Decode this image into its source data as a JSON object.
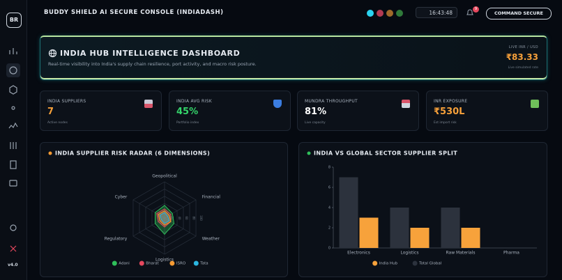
{
  "header": {
    "logo": "BR",
    "title": "BUDDY SHIELD AI SECURE CONSOLE (INDIADASH)",
    "clock": "16:43:48",
    "notifications": "9",
    "button": "COMMAND SECURE"
  },
  "sidebar": {
    "version": "v4.0"
  },
  "hero": {
    "title": "INDIA HUB INTELLIGENCE DASHBOARD",
    "subtitle": "Real-time visibility into India's supply chain resilience, port activity, and macro risk posture.",
    "rate_label": "LIVE INR / USD",
    "rate_value": "₹83.33",
    "rate_note": "Live simulated rate"
  },
  "cards": [
    {
      "label": "INDIA SUPPLIERS",
      "value": "7",
      "note": "Active nodes"
    },
    {
      "label": "INDIA AVG RISK",
      "value": "45%",
      "note": "Portfolio index"
    },
    {
      "label": "MUNDRA THROUGHPUT",
      "value": "81%",
      "note": "Live capacity"
    },
    {
      "label": "INR EXPOSURE",
      "value": "₹530L",
      "note": "Est import risk"
    }
  ],
  "chart_data": [
    {
      "type": "radar",
      "title": "INDIA SUPPLIER RISK RADAR (6 DIMENSIONS)",
      "categories": [
        "Geopolitical",
        "Financial",
        "Weather",
        "Logistics",
        "Regulatory",
        "Cyber"
      ],
      "series": [
        {
          "name": "Adani",
          "color": "#2fbf5a",
          "values": [
            35,
            25,
            30,
            45,
            30,
            30
          ]
        },
        {
          "name": "Bharat",
          "color": "#e5485e",
          "values": [
            25,
            20,
            20,
            25,
            20,
            25
          ]
        },
        {
          "name": "ISRO",
          "color": "#f59a32",
          "values": [
            20,
            15,
            20,
            20,
            15,
            20
          ]
        },
        {
          "name": "Tata",
          "color": "#2bb6e0",
          "values": [
            15,
            10,
            15,
            15,
            10,
            15
          ]
        }
      ],
      "rlim": [
        0,
        100
      ],
      "rticks": [
        20,
        40,
        60,
        80,
        100
      ]
    },
    {
      "type": "bar",
      "title": "INDIA VS GLOBAL SECTOR SUPPLIER SPLIT",
      "categories": [
        "Electronics",
        "Logistics",
        "Raw Materials",
        "Pharma"
      ],
      "series": [
        {
          "name": "India Hub",
          "color": "#f7a23b",
          "values": [
            3,
            2,
            2,
            0
          ]
        },
        {
          "name": "Total Global",
          "color": "#2c323d",
          "values": [
            7,
            4,
            4,
            0
          ]
        }
      ],
      "ylim": [
        0,
        8
      ],
      "yticks": [
        0,
        2,
        4,
        6,
        8
      ]
    }
  ]
}
